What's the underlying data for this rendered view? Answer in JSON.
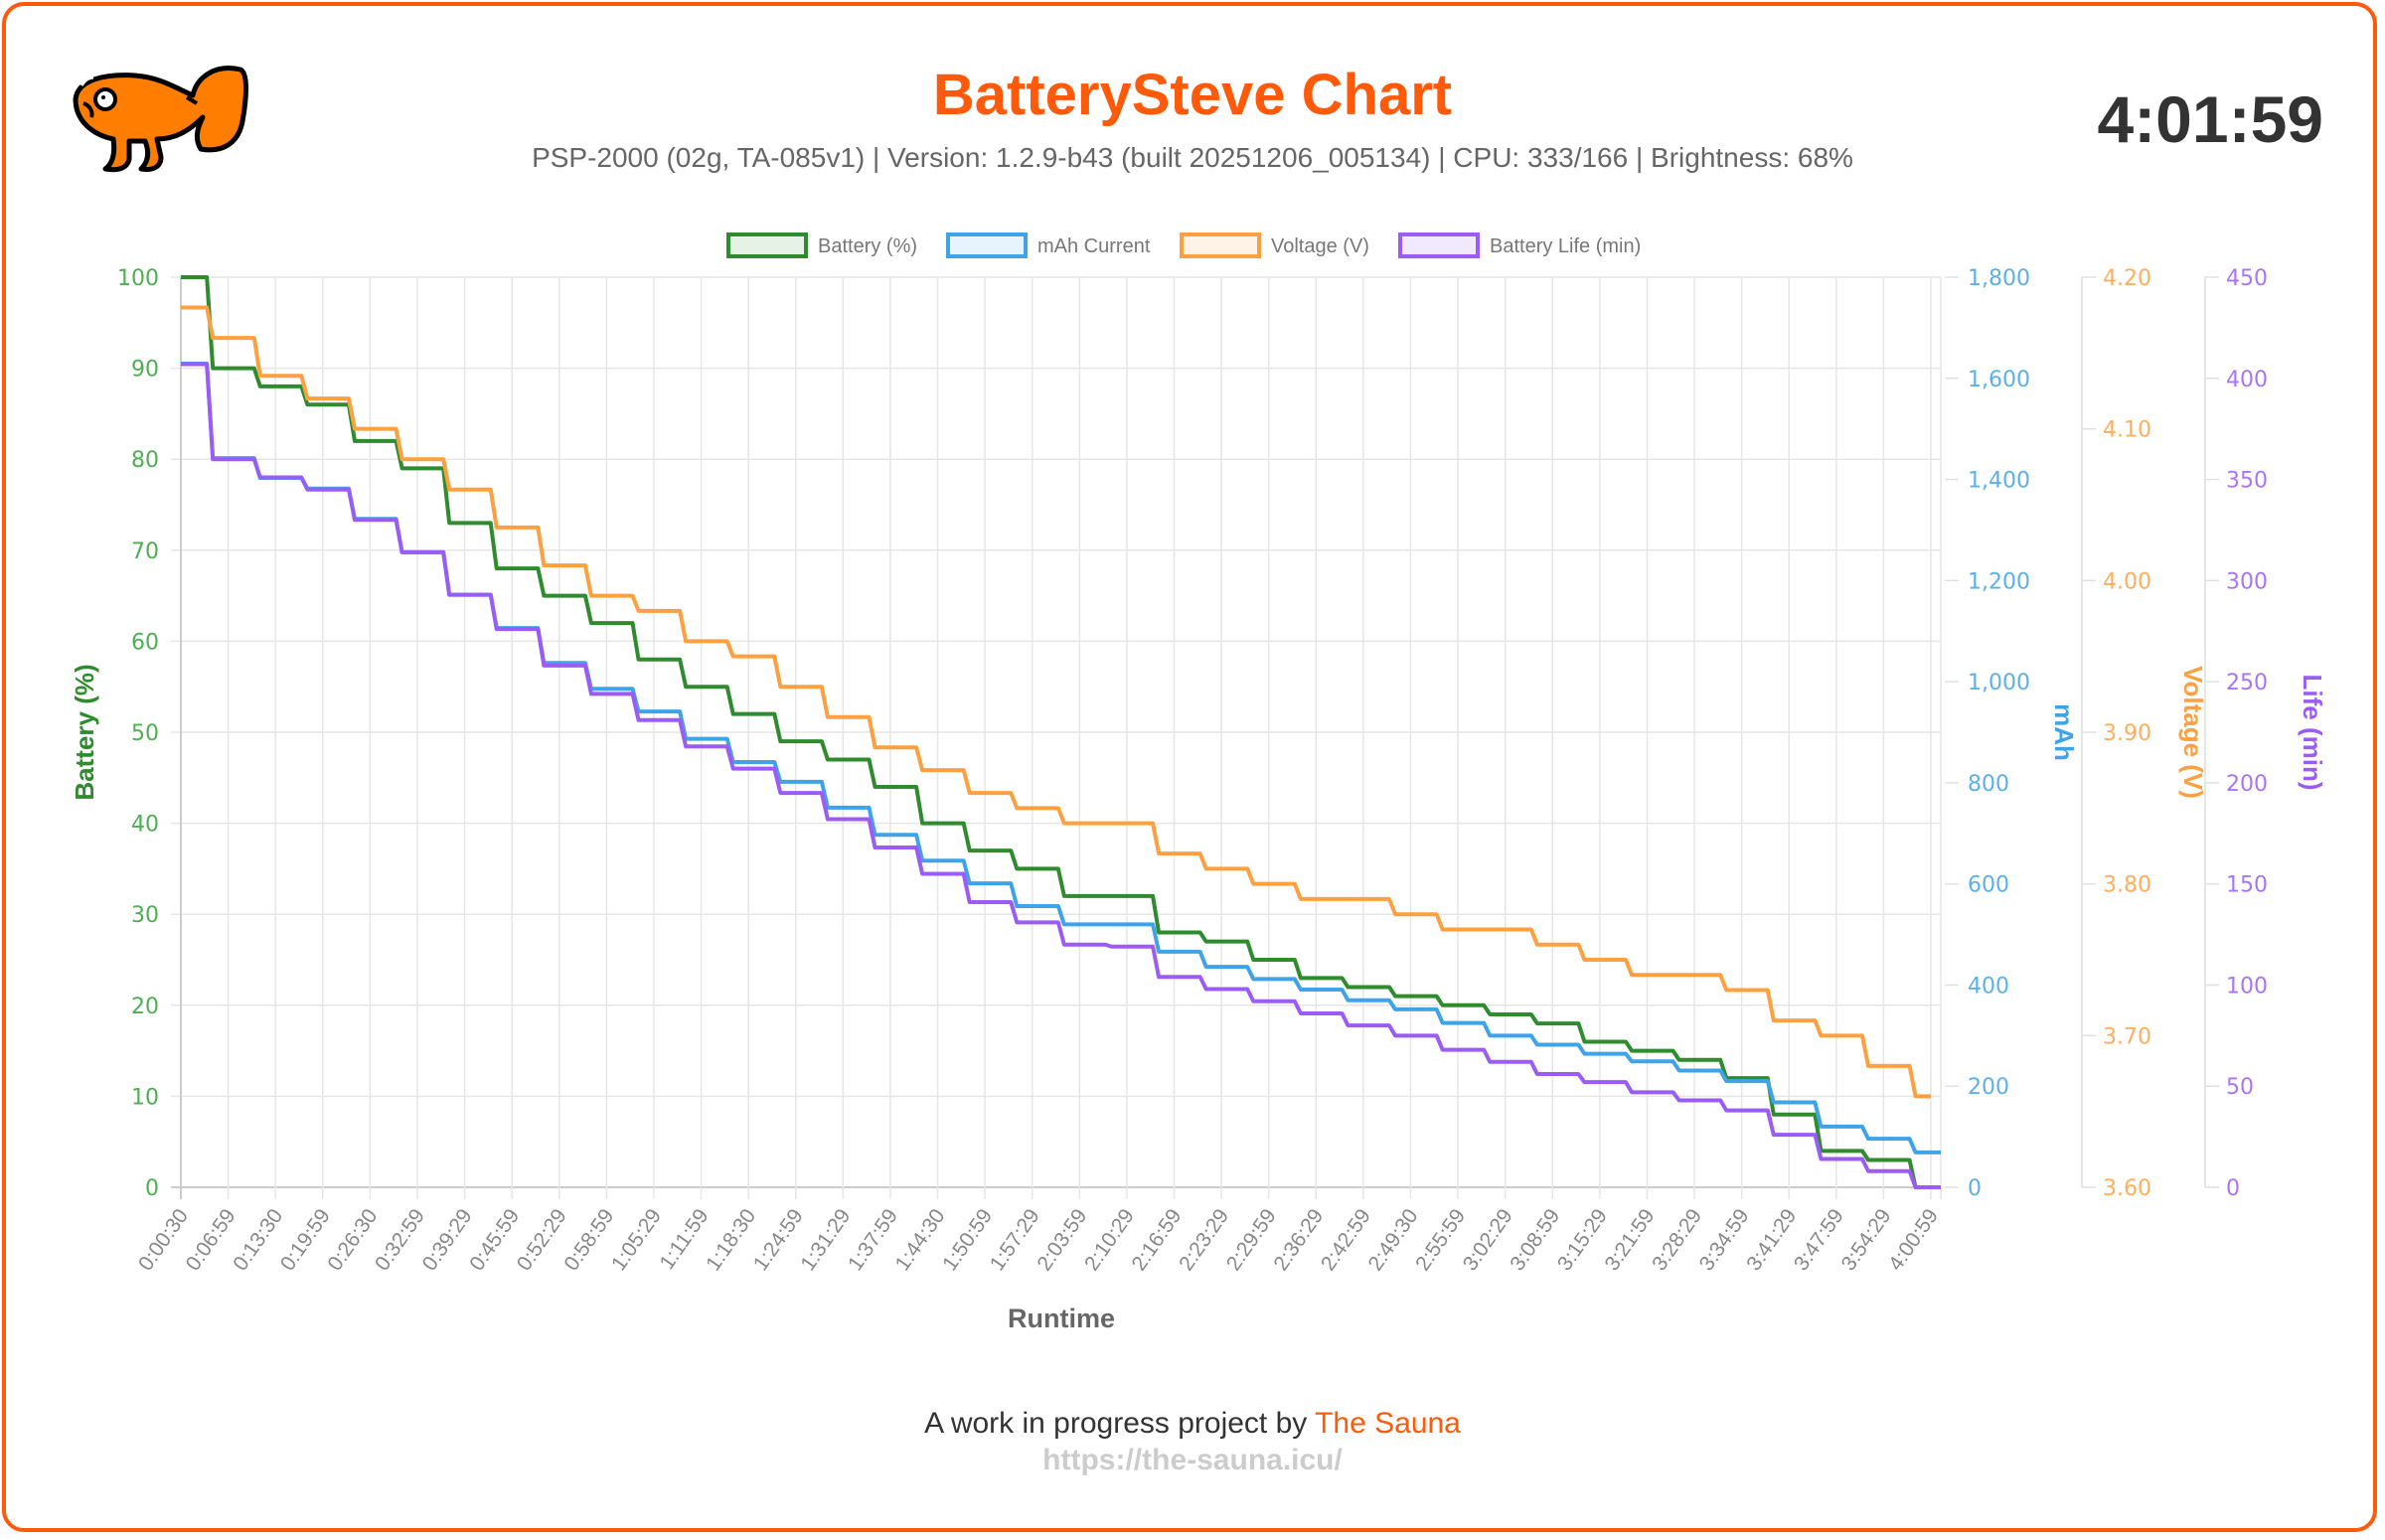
{
  "header": {
    "title": "BatterySteve Chart",
    "subtitle": "PSP-2000 (02g, TA-085v1) | Version: 1.2.9-b43 (built 20251206_005134) | CPU: 333/166 | Brightness: 68%",
    "elapsed_time": "4:01:59",
    "logo_icon": "orange-fish-logo"
  },
  "footer": {
    "prefix": "A work in progress project by",
    "link_label": "The Sauna",
    "url": "https://the-sauna.icu/"
  },
  "colors": {
    "accent": "#ff5a0a",
    "battery": "#2e8b2e",
    "mah": "#3fa3e8",
    "voltage": "#ffa040",
    "life": "#9b5cf6"
  },
  "chart_data": {
    "type": "line",
    "title": "",
    "xlabel": "Runtime",
    "legend_position": "top-center",
    "grid": true,
    "x": [
      "0:00:30",
      "0:06:59",
      "0:13:30",
      "0:19:59",
      "0:26:30",
      "0:32:59",
      "0:39:29",
      "0:45:59",
      "0:52:29",
      "0:58:59",
      "1:05:29",
      "1:11:59",
      "1:18:30",
      "1:24:59",
      "1:31:29",
      "1:37:59",
      "1:44:30",
      "1:50:59",
      "1:57:29",
      "2:03:59",
      "2:10:29",
      "2:16:59",
      "2:23:29",
      "2:29:59",
      "2:36:29",
      "2:42:59",
      "2:49:30",
      "2:55:59",
      "3:02:29",
      "3:08:59",
      "3:15:29",
      "3:21:59",
      "3:28:29",
      "3:34:59",
      "3:41:29",
      "3:47:59",
      "3:54:29",
      "4:00:59"
    ],
    "axes": [
      {
        "id": "battery",
        "title": "Battery (%)",
        "side": "left",
        "range": [
          0,
          100
        ],
        "ticks": [
          "0",
          "10",
          "20",
          "30",
          "40",
          "50",
          "60",
          "70",
          "80",
          "90",
          "100"
        ],
        "tick_values": [
          0,
          10,
          20,
          30,
          40,
          50,
          60,
          70,
          80,
          90,
          100
        ]
      },
      {
        "id": "mah",
        "title": "mAh",
        "side": "right",
        "range": [
          0,
          1800
        ],
        "ticks": [
          "0",
          "200",
          "400",
          "600",
          "800",
          "1,000",
          "1,200",
          "1,400",
          "1,600",
          "1,800"
        ],
        "tick_values": [
          0,
          200,
          400,
          600,
          800,
          1000,
          1200,
          1400,
          1600,
          1800
        ]
      },
      {
        "id": "voltage",
        "title": "Voltage (V)",
        "side": "right",
        "range": [
          3.6,
          4.2
        ],
        "ticks": [
          "3.60",
          "3.70",
          "3.80",
          "3.90",
          "4.00",
          "4.10",
          "4.20"
        ],
        "tick_values": [
          3.6,
          3.7,
          3.8,
          3.9,
          4.0,
          4.1,
          4.2
        ]
      },
      {
        "id": "life",
        "title": "Life (min)",
        "side": "right",
        "range": [
          0,
          450
        ],
        "ticks": [
          "0",
          "50",
          "100",
          "150",
          "200",
          "250",
          "300",
          "350",
          "400",
          "450"
        ],
        "tick_values": [
          0,
          50,
          100,
          150,
          200,
          250,
          300,
          350,
          400,
          450
        ]
      }
    ],
    "series": [
      {
        "name": "Battery (%)",
        "axis": "battery",
        "color": "#2e8b2e",
        "fill": "#e6f2e6",
        "values": [
          100,
          90,
          88,
          86,
          82,
          79,
          73,
          68,
          65,
          62,
          58,
          55,
          52,
          49,
          47,
          44,
          40,
          37,
          35,
          32,
          32,
          28,
          27,
          25,
          23,
          22,
          21,
          20,
          19,
          18,
          16,
          15,
          14,
          12,
          8,
          4,
          3,
          0
        ]
      },
      {
        "name": "mAh Current",
        "axis": "mah",
        "color": "#3fa3e8",
        "fill": "#e8f4fd",
        "values": [
          1629,
          1442,
          1403,
          1382,
          1322,
          1256,
          1172,
          1106,
          1037,
          986,
          941,
          887,
          841,
          802,
          751,
          697,
          646,
          601,
          556,
          520,
          520,
          466,
          436,
          412,
          391,
          370,
          352,
          325,
          300,
          282,
          264,
          249,
          231,
          210,
          168,
          120,
          96,
          69
        ]
      },
      {
        "name": "Voltage (V)",
        "axis": "voltage",
        "color": "#ffa040",
        "fill": "#fff2e6",
        "values": [
          4.18,
          4.16,
          4.135,
          4.12,
          4.1,
          4.08,
          4.06,
          4.035,
          4.01,
          3.99,
          3.98,
          3.96,
          3.95,
          3.93,
          3.91,
          3.89,
          3.875,
          3.86,
          3.85,
          3.84,
          3.84,
          3.82,
          3.81,
          3.8,
          3.79,
          3.79,
          3.78,
          3.77,
          3.77,
          3.76,
          3.75,
          3.74,
          3.74,
          3.73,
          3.71,
          3.7,
          3.68,
          3.66
        ]
      },
      {
        "name": "Battery Life (min)",
        "axis": "life",
        "color": "#9b5cf6",
        "fill": "#f1eafe",
        "values": [
          407,
          360,
          351,
          345,
          330,
          314,
          293,
          276,
          258,
          244,
          231,
          218,
          207,
          195,
          182,
          168,
          155,
          141,
          131,
          120,
          119,
          104,
          98,
          92,
          86,
          80,
          75,
          68,
          62,
          56,
          52,
          47,
          43,
          38,
          26,
          14,
          8,
          0
        ]
      }
    ]
  }
}
